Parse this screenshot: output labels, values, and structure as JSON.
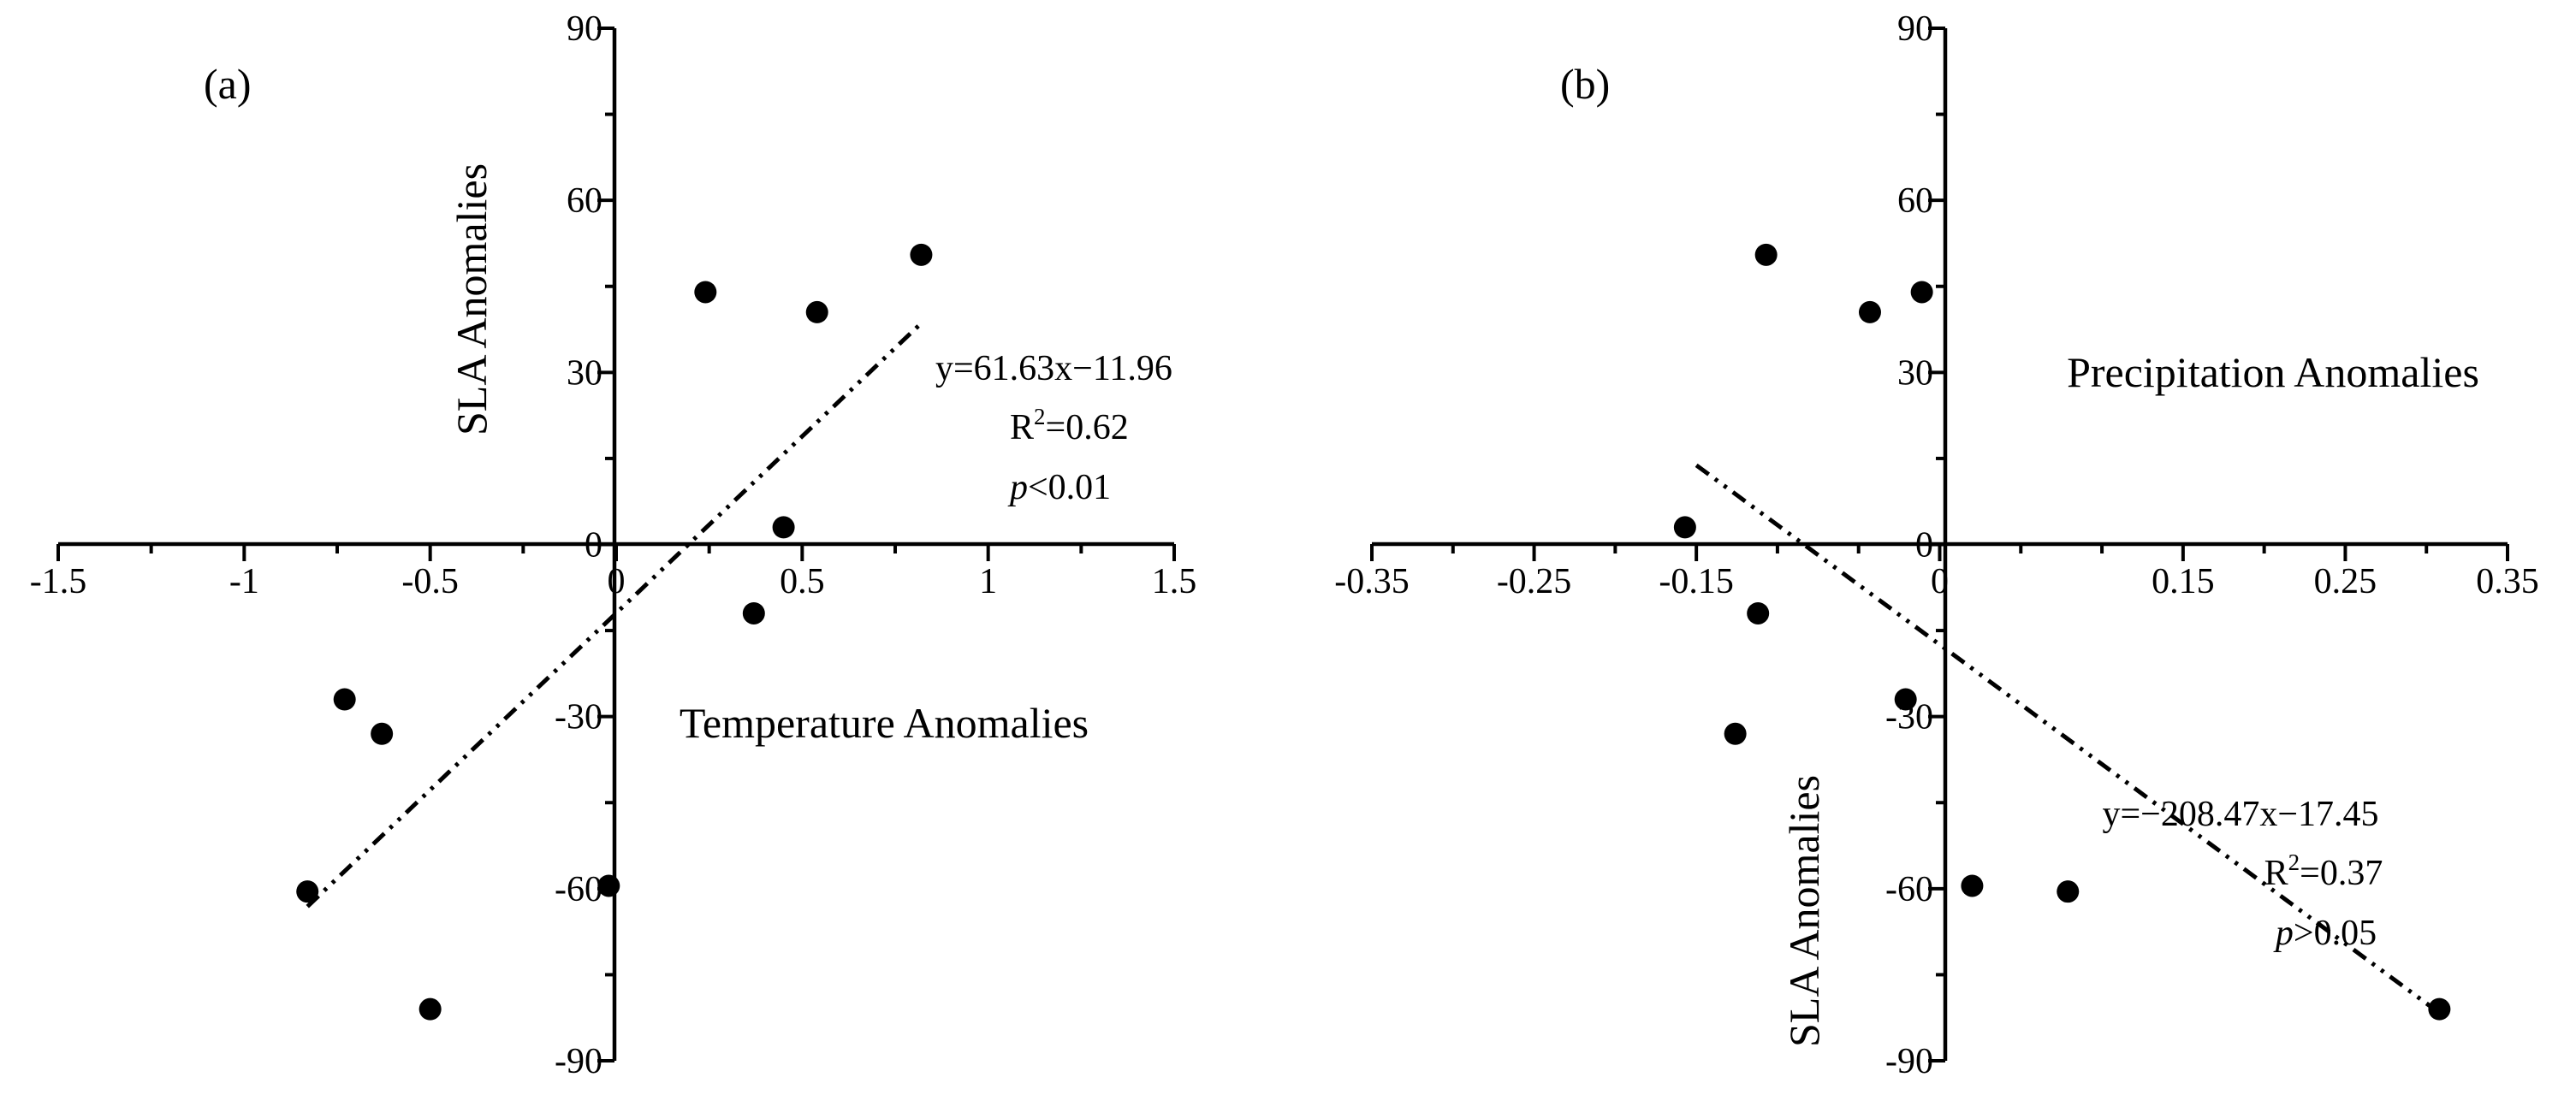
{
  "chart_data": [
    {
      "type": "scatter",
      "panel_label": "(a)",
      "xlabel": "Temperature Anomalies",
      "ylabel": "SLA Anomalies",
      "xlim": [
        -1.5,
        1.5
      ],
      "ylim": [
        -90,
        90
      ],
      "x_ticks": [
        "-1.5",
        "-1",
        "-0.5",
        "0",
        "0.5",
        "1",
        "1.5"
      ],
      "x_tick_values": [
        -1.5,
        -1,
        -0.5,
        0,
        0.5,
        1,
        1.5
      ],
      "y_ticks": [
        "-90",
        "-60",
        "-30",
        "0",
        "30",
        "60",
        "90"
      ],
      "y_tick_values": [
        -90,
        -60,
        -30,
        0,
        30,
        60,
        90
      ],
      "x_minor_step": 0.25,
      "y_minor_step": 15,
      "points": [
        {
          "x": -0.83,
          "y": -60.5
        },
        {
          "x": -0.73,
          "y": -27
        },
        {
          "x": -0.63,
          "y": -33
        },
        {
          "x": -0.5,
          "y": -81
        },
        {
          "x": -0.02,
          "y": -59.5
        },
        {
          "x": 0.24,
          "y": 44
        },
        {
          "x": 0.37,
          "y": -12
        },
        {
          "x": 0.45,
          "y": 3
        },
        {
          "x": 0.54,
          "y": 40.5
        },
        {
          "x": 0.82,
          "y": 50.5
        }
      ],
      "fit": {
        "slope": 61.63,
        "intercept": -11.96,
        "x_range": [
          -0.83,
          0.82
        ]
      },
      "equation": "y=61.63x−11.96",
      "r2_prefix": "R",
      "r2_sup": "2",
      "r2_value": "=0.62",
      "p_italic": "p",
      "p_value": "<0.01"
    },
    {
      "type": "scatter",
      "panel_label": "(b)",
      "xlabel": "Precipitation Anomalies",
      "ylabel": "SLA Anomalies",
      "xlim": [
        -0.35,
        0.35
      ],
      "ylim": [
        -90,
        90
      ],
      "x_ticks": [
        "-0.35",
        "-0.25",
        "-0.15",
        "0",
        "0.15",
        "0.25",
        "0.35"
      ],
      "x_tick_values": [
        -0.35,
        -0.25,
        -0.15,
        0,
        0.15,
        0.25,
        0.35
      ],
      "y_ticks": [
        "-90",
        "-60",
        "-30",
        "0",
        "30",
        "60",
        "90"
      ],
      "y_tick_values": [
        -90,
        -60,
        -30,
        0,
        30,
        60,
        90
      ],
      "x_minor_step": 0.05,
      "y_minor_step": 15,
      "points": [
        {
          "x": -0.157,
          "y": 3
        },
        {
          "x": -0.112,
          "y": -12
        },
        {
          "x": -0.107,
          "y": 50.5
        },
        {
          "x": -0.126,
          "y": -33
        },
        {
          "x": -0.043,
          "y": 40.5
        },
        {
          "x": -0.021,
          "y": -27
        },
        {
          "x": -0.011,
          "y": 44
        },
        {
          "x": 0.02,
          "y": -59.5
        },
        {
          "x": 0.079,
          "y": -60.5
        },
        {
          "x": 0.308,
          "y": -81
        }
      ],
      "fit": {
        "slope": -208.47,
        "intercept": -17.45,
        "x_range": [
          -0.15,
          0.308
        ]
      },
      "equation": "y=−208.47x−17.45",
      "r2_prefix": "R",
      "r2_sup": "2",
      "r2_value": "=0.37",
      "p_italic": "p",
      "p_value": ">0.05"
    }
  ]
}
